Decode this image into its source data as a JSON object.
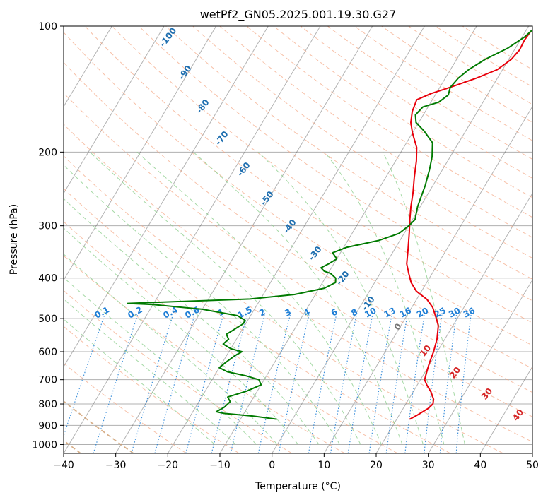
{
  "chart_data": {
    "type": "line",
    "subtype": "skew-t log-p diagram",
    "title": "wetPf2_GN05.2025.001.19.30.G27",
    "xlabel": "Temperature (°C)",
    "ylabel": "Pressure (hPa)",
    "xlim": [
      -40,
      50
    ],
    "ylim": [
      1050,
      100
    ],
    "y_scale": "log",
    "x_ticks": [
      "−40",
      "−30",
      "−20",
      "−10",
      "0",
      "10",
      "20",
      "30",
      "40",
      "50"
    ],
    "y_ticks": [
      "100",
      "200",
      "300",
      "400",
      "500",
      "600",
      "700",
      "800",
      "900",
      "1000"
    ],
    "grid": true,
    "series": [
      {
        "color": "#e8000b",
        "points": [
          [
            22.5,
            870
          ],
          [
            23.5,
            850
          ],
          [
            24.8,
            820
          ],
          [
            25.2,
            800
          ],
          [
            24.8,
            780
          ],
          [
            23.5,
            750
          ],
          [
            21.8,
            720
          ],
          [
            20.8,
            700
          ],
          [
            20.3,
            670
          ],
          [
            19.8,
            640
          ],
          [
            19.3,
            600
          ],
          [
            18.5,
            560
          ],
          [
            17.2,
            520
          ],
          [
            16.0,
            500
          ],
          [
            14.0,
            470
          ],
          [
            12.0,
            450
          ],
          [
            9.0,
            430
          ],
          [
            7.0,
            410
          ],
          [
            5.5,
            390
          ],
          [
            4.0,
            370
          ],
          [
            2.5,
            340
          ],
          [
            0.8,
            310
          ],
          [
            -0.5,
            290
          ],
          [
            -1.8,
            270
          ],
          [
            -3.0,
            250
          ],
          [
            -4.5,
            230
          ],
          [
            -6.0,
            210
          ],
          [
            -7.5,
            195
          ],
          [
            -10.0,
            180
          ],
          [
            -11.5,
            170
          ],
          [
            -12.5,
            160
          ],
          [
            -13.0,
            150
          ],
          [
            -11.0,
            145
          ],
          [
            -8.0,
            140
          ],
          [
            -4.0,
            133
          ],
          [
            -1.0,
            127
          ],
          [
            0.5,
            120
          ],
          [
            1.0,
            114
          ],
          [
            0.8,
            108
          ],
          [
            1.0,
            103
          ],
          [
            1.5,
            100
          ]
        ]
      },
      {
        "color": "#007a00",
        "points": [
          [
            -3,
            870
          ],
          [
            -8,
            855
          ],
          [
            -14,
            842
          ],
          [
            -15.5,
            835
          ],
          [
            -14.5,
            815
          ],
          [
            -14.0,
            790
          ],
          [
            -15.0,
            770
          ],
          [
            -12.0,
            745
          ],
          [
            -10.0,
            720
          ],
          [
            -11.0,
            700
          ],
          [
            -14.0,
            685
          ],
          [
            -18.0,
            670
          ],
          [
            -20.0,
            655
          ],
          [
            -19.5,
            640
          ],
          [
            -18.5,
            615
          ],
          [
            -17.5,
            600
          ],
          [
            -20.0,
            590
          ],
          [
            -22.0,
            575
          ],
          [
            -21.5,
            560
          ],
          [
            -22.5,
            545
          ],
          [
            -21.5,
            530
          ],
          [
            -20.5,
            515
          ],
          [
            -20.5,
            505
          ],
          [
            -22.5,
            492
          ],
          [
            -30.0,
            475
          ],
          [
            -40.0,
            463
          ],
          [
            -45.0,
            460
          ],
          [
            -22.0,
            449
          ],
          [
            -14.0,
            438
          ],
          [
            -9.0,
            423
          ],
          [
            -7.5,
            410
          ],
          [
            -8.0,
            400
          ],
          [
            -9.5,
            390
          ],
          [
            -11.0,
            385
          ],
          [
            -12.0,
            378
          ],
          [
            -11.0,
            370
          ],
          [
            -10.0,
            360
          ],
          [
            -11.5,
            348
          ],
          [
            -9.5,
            338
          ],
          [
            -4.0,
            325
          ],
          [
            -1.0,
            313
          ],
          [
            0.0,
            300
          ],
          [
            0.5,
            290
          ],
          [
            0.0,
            280
          ],
          [
            -0.5,
            270
          ],
          [
            -1.0,
            255
          ],
          [
            -1.5,
            240
          ],
          [
            -2.5,
            220
          ],
          [
            -3.5,
            205
          ],
          [
            -5.0,
            190
          ],
          [
            -8.0,
            178
          ],
          [
            -10.5,
            170
          ],
          [
            -11.5,
            163
          ],
          [
            -11.0,
            156
          ],
          [
            -8.5,
            152
          ],
          [
            -7.5,
            146
          ],
          [
            -8.0,
            140
          ],
          [
            -7.5,
            133
          ],
          [
            -6.5,
            127
          ],
          [
            -4.5,
            120
          ],
          [
            -1.5,
            113
          ],
          [
            0.5,
            106
          ],
          [
            1.5,
            100
          ]
        ]
      }
    ],
    "dry_adiabat_labels": [
      "-100",
      "-90",
      "-80",
      "-70",
      "-60",
      "-50",
      "-40",
      "-30",
      "-20",
      "-10",
      "0",
      "10",
      "20",
      "30",
      "40"
    ],
    "mixing_ratio_labels": [
      "0.1",
      "0.2",
      "0.4",
      "0.6",
      "1",
      "1.5",
      "2",
      "3",
      "4",
      "6",
      "8",
      "10",
      "13",
      "16",
      "20",
      "25",
      "30",
      "36"
    ],
    "mixing_ratio_values": [
      0.1,
      0.2,
      0.4,
      0.6,
      1,
      1.5,
      2,
      3,
      4,
      6,
      8,
      10,
      13,
      16,
      20,
      25,
      30,
      36
    ],
    "colors": {
      "temperature": "#e8000b",
      "dewpoint": "#007a00",
      "isotherm": "#555555",
      "dry_adiabat": "#f4a582",
      "moist_adiabat": "#8fcf8f",
      "mixing_ratio": "#1f7fd6",
      "label_blue": "#1f6fb0",
      "label_red": "#d62728",
      "label_gray": "#777777"
    }
  }
}
